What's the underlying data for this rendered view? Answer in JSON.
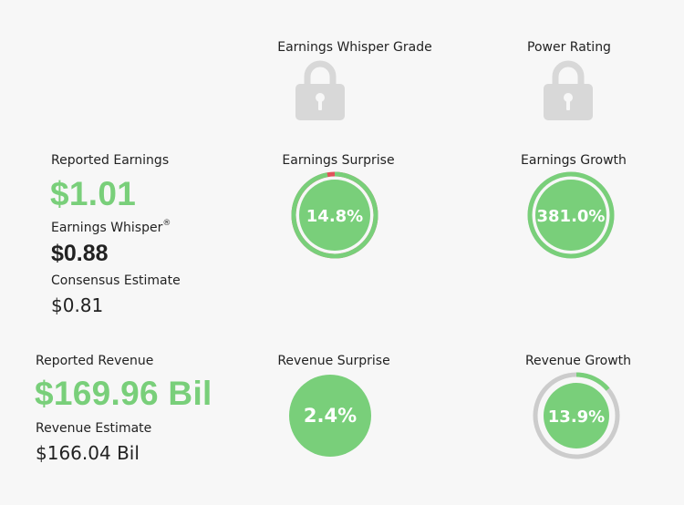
{
  "grades": {
    "whisper_grade_label": "Earnings Whisper Grade",
    "power_rating_label": "Power Rating",
    "icons": [
      "lock-icon",
      "lock-icon"
    ]
  },
  "earnings": {
    "reported_label": "Reported Earnings",
    "reported_value": "$1.01",
    "whisper_label": "Earnings Whisper",
    "whisper_mark": "®",
    "whisper_value": "$0.88",
    "consensus_label": "Consensus Estimate",
    "consensus_value": "$0.81"
  },
  "revenue": {
    "reported_label": "Reported Revenue",
    "reported_value": "$169.96 Bil",
    "estimate_label": "Revenue Estimate",
    "estimate_value": "$166.04 Bil"
  },
  "gauges": {
    "earnings_surprise": {
      "label": "Earnings Surprise",
      "value_text": "14.8%",
      "fraction": 0.97
    },
    "earnings_growth": {
      "label": "Earnings Growth",
      "value_text": "381.0%",
      "fraction": 1.0
    },
    "revenue_surprise": {
      "label": "Revenue Surprise",
      "value_text": "2.4%"
    },
    "revenue_growth": {
      "label": "Revenue Growth",
      "value_text": "13.9%",
      "fraction": 0.139
    }
  },
  "colors": {
    "green": "#79cf7a",
    "red": "#e0535b",
    "grey": "#cccccc",
    "lock": "#d8d8d8",
    "background": "#f7f7f7"
  }
}
